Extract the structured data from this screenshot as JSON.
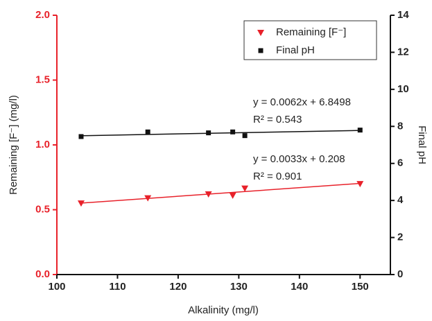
{
  "chart_data": {
    "type": "scatter",
    "xlabel": "Alkalinity (mg/l)",
    "ylabel": "Remaining [F⁻] (mg/l)",
    "y2label": "Final pH",
    "xlim": [
      100,
      155
    ],
    "xticks": [
      100,
      110,
      120,
      130,
      140,
      150
    ],
    "ylim": [
      0,
      2
    ],
    "yticks": [
      {
        "value": 0,
        "label": "0.0"
      },
      0.5,
      {
        "value": 1,
        "label": "1.0"
      },
      1.5,
      {
        "value": 2,
        "label": "2.0"
      }
    ],
    "y2lim": [
      0,
      14
    ],
    "y2ticks": [
      0,
      2,
      4,
      6,
      8,
      10,
      12,
      14
    ],
    "legend": "upper right",
    "left_axis_color": "#e8212a",
    "series": [
      {
        "name": "Remaining [F⁻]",
        "color": "#e8212a",
        "marker": "triangle-down",
        "x": [
          104,
          115,
          125,
          129,
          131,
          150
        ],
        "values": [
          0.55,
          0.59,
          0.62,
          0.61,
          0.665,
          0.7
        ],
        "fit": {
          "x": [
            104,
            150
          ],
          "values": [
            0.551,
            0.703
          ],
          "equation": "y = 0.0033x + 0.208",
          "r2": "R² = 0.901"
        }
      },
      {
        "name": "Final pH",
        "color": "#111111",
        "marker": "square",
        "axis": "y2",
        "x": [
          104,
          115,
          125,
          129,
          131,
          150
        ],
        "values": [
          7.45,
          7.7,
          7.65,
          7.7,
          7.5,
          7.8
        ],
        "fit": {
          "x": [
            104,
            150
          ],
          "values": [
            7.495,
            7.78
          ],
          "equation": "y = 0.0062x + 6.8498",
          "r2": "R² = 0.543"
        }
      }
    ]
  }
}
